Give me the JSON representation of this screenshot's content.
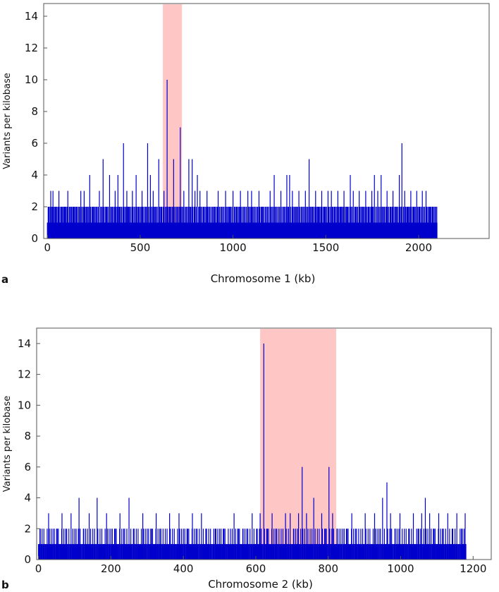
{
  "colors": {
    "bars": "#0000cc",
    "highlight": "#ffb3b3",
    "axis": "#555555"
  },
  "chart_data": [
    {
      "type": "bar",
      "panel_label": "a",
      "xlabel": "Chromosome  1 (kb)",
      "ylabel": "Variants per kilobase",
      "xlim": [
        -20,
        2380
      ],
      "ylim": [
        0,
        14.8
      ],
      "xticks": [
        0,
        500,
        1000,
        1500,
        2000
      ],
      "yticks": [
        0,
        2,
        4,
        6,
        8,
        10,
        12,
        14
      ],
      "data_extent": [
        0,
        2100
      ],
      "baseline_pattern": [
        1,
        1,
        0,
        1,
        2,
        1,
        1,
        0,
        1,
        1,
        2,
        1,
        0,
        1,
        1,
        1,
        2,
        1,
        1,
        0,
        1,
        1,
        1,
        2
      ],
      "highlight": {
        "x_start": 622,
        "x_end": 725
      },
      "peaks": [
        {
          "x": 8,
          "y": 2
        },
        {
          "x": 18,
          "y": 3
        },
        {
          "x": 30,
          "y": 3
        },
        {
          "x": 44,
          "y": 2
        },
        {
          "x": 62,
          "y": 3
        },
        {
          "x": 78,
          "y": 2
        },
        {
          "x": 92,
          "y": 2
        },
        {
          "x": 110,
          "y": 3
        },
        {
          "x": 125,
          "y": 2
        },
        {
          "x": 140,
          "y": 2
        },
        {
          "x": 158,
          "y": 2
        },
        {
          "x": 180,
          "y": 3
        },
        {
          "x": 198,
          "y": 3
        },
        {
          "x": 210,
          "y": 2
        },
        {
          "x": 228,
          "y": 4
        },
        {
          "x": 248,
          "y": 2
        },
        {
          "x": 262,
          "y": 2
        },
        {
          "x": 280,
          "y": 3
        },
        {
          "x": 300,
          "y": 5
        },
        {
          "x": 318,
          "y": 2
        },
        {
          "x": 335,
          "y": 4
        },
        {
          "x": 350,
          "y": 2
        },
        {
          "x": 365,
          "y": 3
        },
        {
          "x": 380,
          "y": 4
        },
        {
          "x": 393,
          "y": 2
        },
        {
          "x": 410,
          "y": 6
        },
        {
          "x": 428,
          "y": 3
        },
        {
          "x": 440,
          "y": 2
        },
        {
          "x": 458,
          "y": 3
        },
        {
          "x": 478,
          "y": 4
        },
        {
          "x": 492,
          "y": 2
        },
        {
          "x": 510,
          "y": 3
        },
        {
          "x": 528,
          "y": 2
        },
        {
          "x": 540,
          "y": 6
        },
        {
          "x": 555,
          "y": 4
        },
        {
          "x": 570,
          "y": 3
        },
        {
          "x": 585,
          "y": 2
        },
        {
          "x": 600,
          "y": 5
        },
        {
          "x": 612,
          "y": 2
        },
        {
          "x": 628,
          "y": 3
        },
        {
          "x": 645,
          "y": 10
        },
        {
          "x": 660,
          "y": 2
        },
        {
          "x": 680,
          "y": 5
        },
        {
          "x": 700,
          "y": 2
        },
        {
          "x": 716,
          "y": 7
        },
        {
          "x": 735,
          "y": 3
        },
        {
          "x": 748,
          "y": 2
        },
        {
          "x": 762,
          "y": 5
        },
        {
          "x": 780,
          "y": 5
        },
        {
          "x": 795,
          "y": 3
        },
        {
          "x": 808,
          "y": 4
        },
        {
          "x": 822,
          "y": 3
        },
        {
          "x": 840,
          "y": 2
        },
        {
          "x": 860,
          "y": 3
        },
        {
          "x": 880,
          "y": 2
        },
        {
          "x": 900,
          "y": 2
        },
        {
          "x": 920,
          "y": 3
        },
        {
          "x": 940,
          "y": 2
        },
        {
          "x": 960,
          "y": 3
        },
        {
          "x": 980,
          "y": 2
        },
        {
          "x": 1000,
          "y": 3
        },
        {
          "x": 1020,
          "y": 2
        },
        {
          "x": 1040,
          "y": 3
        },
        {
          "x": 1060,
          "y": 2
        },
        {
          "x": 1080,
          "y": 3
        },
        {
          "x": 1100,
          "y": 3
        },
        {
          "x": 1120,
          "y": 2
        },
        {
          "x": 1140,
          "y": 3
        },
        {
          "x": 1160,
          "y": 2
        },
        {
          "x": 1180,
          "y": 2
        },
        {
          "x": 1200,
          "y": 3
        },
        {
          "x": 1222,
          "y": 4
        },
        {
          "x": 1240,
          "y": 2
        },
        {
          "x": 1258,
          "y": 3
        },
        {
          "x": 1272,
          "y": 2
        },
        {
          "x": 1290,
          "y": 4
        },
        {
          "x": 1305,
          "y": 4
        },
        {
          "x": 1320,
          "y": 3
        },
        {
          "x": 1338,
          "y": 2
        },
        {
          "x": 1355,
          "y": 3
        },
        {
          "x": 1372,
          "y": 2
        },
        {
          "x": 1390,
          "y": 3
        },
        {
          "x": 1410,
          "y": 5
        },
        {
          "x": 1428,
          "y": 2
        },
        {
          "x": 1445,
          "y": 3
        },
        {
          "x": 1460,
          "y": 2
        },
        {
          "x": 1478,
          "y": 3
        },
        {
          "x": 1495,
          "y": 2
        },
        {
          "x": 1512,
          "y": 3
        },
        {
          "x": 1530,
          "y": 3
        },
        {
          "x": 1548,
          "y": 2
        },
        {
          "x": 1565,
          "y": 3
        },
        {
          "x": 1580,
          "y": 2
        },
        {
          "x": 1598,
          "y": 3
        },
        {
          "x": 1615,
          "y": 2
        },
        {
          "x": 1632,
          "y": 4
        },
        {
          "x": 1648,
          "y": 3
        },
        {
          "x": 1665,
          "y": 2
        },
        {
          "x": 1680,
          "y": 3
        },
        {
          "x": 1698,
          "y": 2
        },
        {
          "x": 1715,
          "y": 3
        },
        {
          "x": 1730,
          "y": 2
        },
        {
          "x": 1748,
          "y": 3
        },
        {
          "x": 1762,
          "y": 4
        },
        {
          "x": 1780,
          "y": 3
        },
        {
          "x": 1798,
          "y": 4
        },
        {
          "x": 1815,
          "y": 2
        },
        {
          "x": 1830,
          "y": 3
        },
        {
          "x": 1848,
          "y": 2
        },
        {
          "x": 1862,
          "y": 3
        },
        {
          "x": 1880,
          "y": 2
        },
        {
          "x": 1896,
          "y": 4
        },
        {
          "x": 1910,
          "y": 6
        },
        {
          "x": 1925,
          "y": 3
        },
        {
          "x": 1940,
          "y": 2
        },
        {
          "x": 1958,
          "y": 3
        },
        {
          "x": 1975,
          "y": 2
        },
        {
          "x": 1990,
          "y": 3
        },
        {
          "x": 2005,
          "y": 2
        },
        {
          "x": 2020,
          "y": 3
        },
        {
          "x": 2040,
          "y": 3
        },
        {
          "x": 2060,
          "y": 2
        },
        {
          "x": 2078,
          "y": 2
        },
        {
          "x": 2092,
          "y": 2
        }
      ]
    },
    {
      "type": "bar",
      "panel_label": "b",
      "xlabel": "Chromosome  2 (kb)",
      "ylabel": "Variants per kilobase",
      "xlim": [
        -5,
        1250
      ],
      "ylim": [
        0,
        15
      ],
      "xticks": [
        0,
        200,
        400,
        600,
        800,
        1000,
        1200
      ],
      "yticks": [
        0,
        2,
        4,
        6,
        8,
        10,
        12,
        14
      ],
      "data_extent": [
        0,
        1180
      ],
      "baseline_pattern": [
        1,
        0,
        1,
        1,
        2,
        1,
        0,
        1,
        1,
        1,
        2,
        1,
        0,
        1,
        1,
        2,
        1,
        1,
        0,
        1
      ],
      "highlight": {
        "x_start": 612,
        "x_end": 822
      },
      "peaks": [
        {
          "x": 5,
          "y": 2
        },
        {
          "x": 15,
          "y": 2
        },
        {
          "x": 28,
          "y": 3
        },
        {
          "x": 40,
          "y": 2
        },
        {
          "x": 52,
          "y": 2
        },
        {
          "x": 65,
          "y": 3
        },
        {
          "x": 78,
          "y": 2
        },
        {
          "x": 90,
          "y": 3
        },
        {
          "x": 100,
          "y": 2
        },
        {
          "x": 112,
          "y": 4
        },
        {
          "x": 125,
          "y": 2
        },
        {
          "x": 140,
          "y": 3
        },
        {
          "x": 150,
          "y": 2
        },
        {
          "x": 162,
          "y": 4
        },
        {
          "x": 175,
          "y": 2
        },
        {
          "x": 188,
          "y": 3
        },
        {
          "x": 200,
          "y": 2
        },
        {
          "x": 212,
          "y": 2
        },
        {
          "x": 225,
          "y": 3
        },
        {
          "x": 238,
          "y": 2
        },
        {
          "x": 250,
          "y": 4
        },
        {
          "x": 262,
          "y": 2
        },
        {
          "x": 275,
          "y": 2
        },
        {
          "x": 288,
          "y": 3
        },
        {
          "x": 300,
          "y": 2
        },
        {
          "x": 312,
          "y": 2
        },
        {
          "x": 325,
          "y": 3
        },
        {
          "x": 338,
          "y": 2
        },
        {
          "x": 350,
          "y": 2
        },
        {
          "x": 362,
          "y": 3
        },
        {
          "x": 375,
          "y": 2
        },
        {
          "x": 388,
          "y": 3
        },
        {
          "x": 400,
          "y": 2
        },
        {
          "x": 412,
          "y": 2
        },
        {
          "x": 425,
          "y": 3
        },
        {
          "x": 438,
          "y": 2
        },
        {
          "x": 450,
          "y": 3
        },
        {
          "x": 462,
          "y": 2
        },
        {
          "x": 475,
          "y": 2
        },
        {
          "x": 488,
          "y": 2
        },
        {
          "x": 500,
          "y": 2
        },
        {
          "x": 512,
          "y": 2
        },
        {
          "x": 540,
          "y": 3
        },
        {
          "x": 552,
          "y": 2
        },
        {
          "x": 565,
          "y": 2
        },
        {
          "x": 578,
          "y": 2
        },
        {
          "x": 590,
          "y": 3
        },
        {
          "x": 602,
          "y": 2
        },
        {
          "x": 612,
          "y": 3
        },
        {
          "x": 622,
          "y": 14
        },
        {
          "x": 632,
          "y": 2
        },
        {
          "x": 645,
          "y": 3
        },
        {
          "x": 658,
          "y": 2
        },
        {
          "x": 670,
          "y": 2
        },
        {
          "x": 682,
          "y": 3
        },
        {
          "x": 695,
          "y": 3
        },
        {
          "x": 705,
          "y": 2
        },
        {
          "x": 718,
          "y": 3
        },
        {
          "x": 728,
          "y": 6
        },
        {
          "x": 740,
          "y": 3
        },
        {
          "x": 750,
          "y": 2
        },
        {
          "x": 760,
          "y": 4
        },
        {
          "x": 770,
          "y": 2
        },
        {
          "x": 782,
          "y": 3
        },
        {
          "x": 792,
          "y": 2
        },
        {
          "x": 802,
          "y": 6
        },
        {
          "x": 812,
          "y": 3
        },
        {
          "x": 825,
          "y": 2
        },
        {
          "x": 840,
          "y": 2
        },
        {
          "x": 852,
          "y": 2
        },
        {
          "x": 865,
          "y": 3
        },
        {
          "x": 878,
          "y": 2
        },
        {
          "x": 890,
          "y": 2
        },
        {
          "x": 902,
          "y": 3
        },
        {
          "x": 915,
          "y": 2
        },
        {
          "x": 928,
          "y": 3
        },
        {
          "x": 940,
          "y": 2
        },
        {
          "x": 950,
          "y": 4
        },
        {
          "x": 962,
          "y": 5
        },
        {
          "x": 972,
          "y": 3
        },
        {
          "x": 985,
          "y": 2
        },
        {
          "x": 998,
          "y": 3
        },
        {
          "x": 1010,
          "y": 2
        },
        {
          "x": 1022,
          "y": 2
        },
        {
          "x": 1035,
          "y": 3
        },
        {
          "x": 1048,
          "y": 2
        },
        {
          "x": 1058,
          "y": 3
        },
        {
          "x": 1068,
          "y": 4
        },
        {
          "x": 1080,
          "y": 3
        },
        {
          "x": 1092,
          "y": 2
        },
        {
          "x": 1105,
          "y": 3
        },
        {
          "x": 1118,
          "y": 2
        },
        {
          "x": 1130,
          "y": 3
        },
        {
          "x": 1142,
          "y": 2
        },
        {
          "x": 1155,
          "y": 3
        },
        {
          "x": 1168,
          "y": 2
        },
        {
          "x": 1178,
          "y": 3
        }
      ]
    }
  ]
}
